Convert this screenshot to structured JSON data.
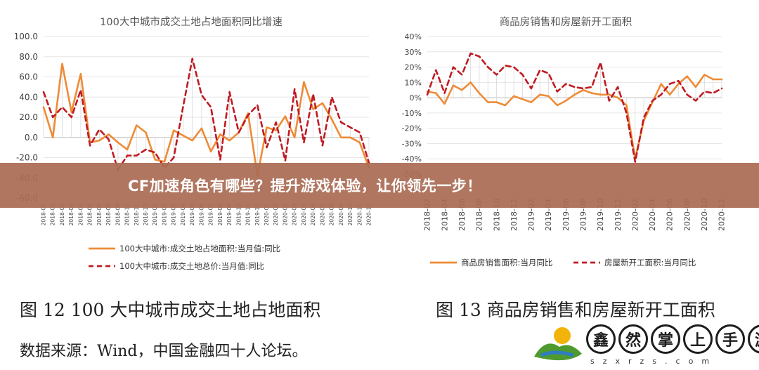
{
  "banner_text": "CF加速角色有哪些？提升游戏体验，让你领先一步！",
  "caption_left": "图 12 100 大中城市成交土地占地面积",
  "caption_right": "图 13  商品房销售和房屋新开工面积",
  "source_text": "数据来源：Wind，中国金融四十人论坛。",
  "logo": {
    "chars": [
      "鑫",
      "然",
      "掌",
      "上",
      "手",
      "游"
    ],
    "url": "szxrzs.com"
  },
  "chart_data": [
    {
      "type": "line",
      "title": "100大中城市成交土地占地面积同比增速",
      "x": [
        "2018-01",
        "2018-02",
        "2018-03",
        "2018-04",
        "2018-05",
        "2018-06",
        "2018-07",
        "2018-08",
        "2018-09",
        "2018-10",
        "2018-11",
        "2018-12",
        "2019-01",
        "2019-02",
        "2019-03",
        "2019-04",
        "2019-05",
        "2019-06",
        "2019-07",
        "2019-08",
        "2019-09",
        "2019-10",
        "2019-11",
        "2019-12",
        "2020-01",
        "2020-02",
        "2020-03",
        "2020-04",
        "2020-05",
        "2020-06",
        "2020-07",
        "2020-08",
        "2020-09",
        "2020-10",
        "2020-11",
        "2020-12"
      ],
      "x_ticks": [
        "2018-01",
        "2018-02",
        "2018-03",
        "2018-04",
        "2018-05",
        "2018-06",
        "2018-07",
        "2018-08",
        "2018-09",
        "2018-10",
        "2018-11",
        "2018-12",
        "2019-01",
        "2019-02",
        "2019-03",
        "2019-04",
        "2019-05",
        "2019-06",
        "2019-07",
        "2019-08",
        "2019-09",
        "2019-10",
        "2019-11",
        "2019-12",
        "2020-01",
        "2020-02",
        "2020-03",
        "2020-04",
        "2020-05",
        "2020-06",
        "2020-07",
        "2020-08",
        "2020-09",
        "2020-10",
        "2020-11",
        "2020-12"
      ],
      "ylim": [
        -60,
        100
      ],
      "y_ticks": [
        "100.0",
        "80.0",
        "60.0",
        "40.0",
        "20.0",
        "0.0",
        "-20.0",
        "-40.0",
        "-60.0"
      ],
      "y_tick_values": [
        100,
        80,
        60,
        40,
        20,
        0,
        -20,
        -40,
        -60
      ],
      "series": [
        {
          "name": "100大中城市:成交土地占地面积:当月值:同比",
          "color": "#ee8b36",
          "dash": false,
          "values": [
            30,
            0,
            73,
            25,
            63,
            -5,
            -3,
            3,
            -5,
            -12,
            12,
            5,
            -22,
            -24,
            7,
            2,
            -3,
            9,
            -14,
            3,
            -3,
            5,
            24,
            -38,
            10,
            7,
            21,
            0,
            55,
            28,
            34,
            18,
            0,
            0,
            -5,
            -30
          ]
        },
        {
          "name": "100大中城市:成交土地总价:当月值:同比",
          "color": "#c01b22",
          "dash": true,
          "values": [
            45,
            20,
            30,
            20,
            47,
            -8,
            8,
            -2,
            -32,
            -18,
            -18,
            -12,
            -15,
            -30,
            -20,
            30,
            78,
            42,
            30,
            -22,
            45,
            5,
            22,
            32,
            -10,
            15,
            -23,
            48,
            -5,
            43,
            -8,
            40,
            15,
            10,
            5,
            -25
          ]
        }
      ],
      "legend": "bottom"
    },
    {
      "type": "line",
      "title": "商品房销售和房屋新开工面积",
      "x": [
        "2018-02",
        "2018-03",
        "2018-04",
        "2018-05",
        "2018-06",
        "2018-07",
        "2018-08",
        "2018-09",
        "2018-10",
        "2018-11",
        "2018-12",
        "2019-01",
        "2019-02",
        "2019-03",
        "2019-04",
        "2019-05",
        "2019-06",
        "2019-07",
        "2019-08",
        "2019-09",
        "2019-10",
        "2019-11",
        "2019-12",
        "2020-01",
        "2020-02",
        "2020-03",
        "2020-04",
        "2020-05",
        "2020-06",
        "2020-07",
        "2020-08",
        "2020-09",
        "2020-10",
        "2020-11",
        "2020-12"
      ],
      "x_ticks": [
        "2018-02",
        "2018-04",
        "2018-06",
        "2018-08",
        "2018-10",
        "2018-12",
        "2019-02",
        "2019-04",
        "2019-06",
        "2019-08",
        "2019-10",
        "2019-12",
        "2020-02",
        "2020-04",
        "2020-06",
        "2020-08",
        "2020-10",
        "2020-12"
      ],
      "ylim": [
        -50,
        40
      ],
      "y_ticks": [
        "40%",
        "30%",
        "20%",
        "10%",
        "0%",
        "-10%",
        "-20%",
        "-30%",
        "-40%",
        "-50%"
      ],
      "y_tick_values": [
        40,
        30,
        20,
        10,
        0,
        -10,
        -20,
        -30,
        -40,
        -50
      ],
      "series": [
        {
          "name": "商品房销售面积:当月同比",
          "color": "#ee8b36",
          "dash": false,
          "values": [
            4,
            3,
            -4,
            8,
            5,
            10,
            3,
            -3,
            -3,
            -5,
            1,
            -1,
            -3,
            2,
            1,
            -5,
            -2,
            2,
            5,
            3,
            2,
            2,
            0,
            -5,
            -40,
            -15,
            -3,
            9,
            2,
            9,
            14,
            7,
            15,
            12,
            12
          ]
        },
        {
          "name": "房屋新开工面积:当月同比",
          "color": "#c01b22",
          "dash": true,
          "values": [
            2,
            18,
            3,
            20,
            15,
            29,
            27,
            20,
            15,
            21,
            20,
            15,
            6,
            18,
            16,
            4,
            9,
            7,
            6,
            7,
            23,
            -2,
            7,
            -10,
            -42,
            -13,
            -2,
            2,
            9,
            11,
            2,
            -2,
            4,
            3,
            6
          ]
        }
      ],
      "legend": "bottom"
    }
  ]
}
